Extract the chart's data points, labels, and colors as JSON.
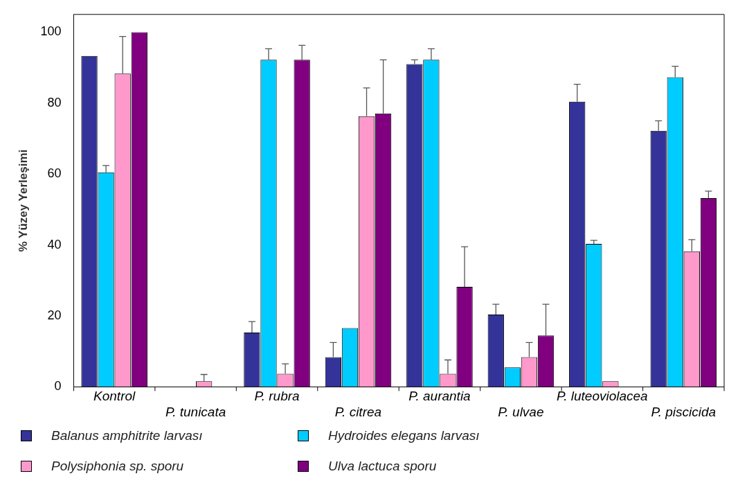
{
  "chart_data": {
    "type": "bar",
    "ylabel": "% Yüzey Yerleşimi",
    "categories": [
      "Kontrol",
      "P. tunicata",
      "P. rubra",
      "P. citrea",
      "P. aurantia",
      "P. ulvae",
      "P. luteoviolacea",
      "P. piscicida"
    ],
    "series": [
      {
        "name": "Balanus amphitrite larvası",
        "color": "#333399",
        "values": [
          93.3,
          0,
          15.3,
          8.4,
          91,
          20.4,
          80.4,
          72.2
        ],
        "errors": [
          null,
          null,
          [
            15.3,
            18.4
          ],
          [
            8.4,
            12.5
          ],
          [
            91,
            92.2
          ],
          [
            20.4,
            23.3
          ],
          [
            80.4,
            85.3
          ],
          [
            72.2,
            75
          ]
        ]
      },
      {
        "name": "Hydroides elegans larvası",
        "color": "#00ccff",
        "values": [
          60.5,
          0,
          92.2,
          16.6,
          92.2,
          5.5,
          40.3,
          87.3
        ],
        "errors": [
          [
            60.5,
            62.4
          ],
          null,
          [
            92.2,
            95.3
          ],
          null,
          [
            92.2,
            95.3
          ],
          null,
          [
            40.3,
            41.3
          ],
          [
            87.3,
            90.4
          ]
        ]
      },
      {
        "name": "Polysiphonia sp. sporu",
        "color": "#ff99cc",
        "values": [
          88.3,
          1.6,
          3.7,
          76.3,
          3.7,
          8.4,
          1.6,
          38.2
        ],
        "errors": [
          [
            88.3,
            98.8
          ],
          [
            1.6,
            3.5
          ],
          [
            3.7,
            6.5
          ],
          [
            76.3,
            84.3
          ],
          [
            3.7,
            7.6
          ],
          [
            8.4,
            12.5
          ],
          null,
          [
            38.2,
            41.5
          ]
        ]
      },
      {
        "name": "Ulva lactuca sporu",
        "color": "#800080",
        "values": [
          100,
          0,
          92.2,
          77.1,
          28.2,
          14.5,
          0,
          53.2
        ],
        "errors": [
          null,
          null,
          [
            92.2,
            96.3
          ],
          [
            77.1,
            92.2
          ],
          [
            28.2,
            39.5
          ],
          [
            14.5,
            23.3
          ],
          null,
          [
            53.2,
            55.2
          ]
        ]
      }
    ],
    "ylim": [
      0,
      105
    ],
    "yticks": [
      0,
      20,
      40,
      60,
      80,
      100
    ],
    "grid": false,
    "legend": "bottom"
  }
}
